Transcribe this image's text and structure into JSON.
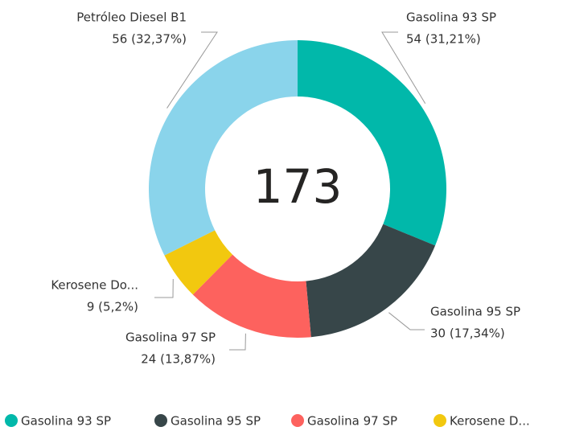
{
  "chart_data": {
    "type": "donut",
    "categories": [
      "Gasolina 93 SP",
      "Gasolina 95 SP",
      "Gasolina 97 SP",
      "Kerosene Do...",
      "Petróleo Diesel B1"
    ],
    "values": [
      54,
      30,
      24,
      9,
      56
    ],
    "value_labels": [
      "54 (31,21%)",
      "30 (17,34%)",
      "24 (13,87%)",
      "9 (5,2%)",
      "56 (32,37%)"
    ],
    "colors": [
      "#01B8AA",
      "#374649",
      "#FD625E",
      "#F2C80F",
      "#8AD4EB"
    ],
    "total": 173,
    "legend_labels": [
      "Gasolina 93 SP",
      "Gasolina 95 SP",
      "Gasolina 97 SP",
      "Kerosene D..."
    ]
  }
}
